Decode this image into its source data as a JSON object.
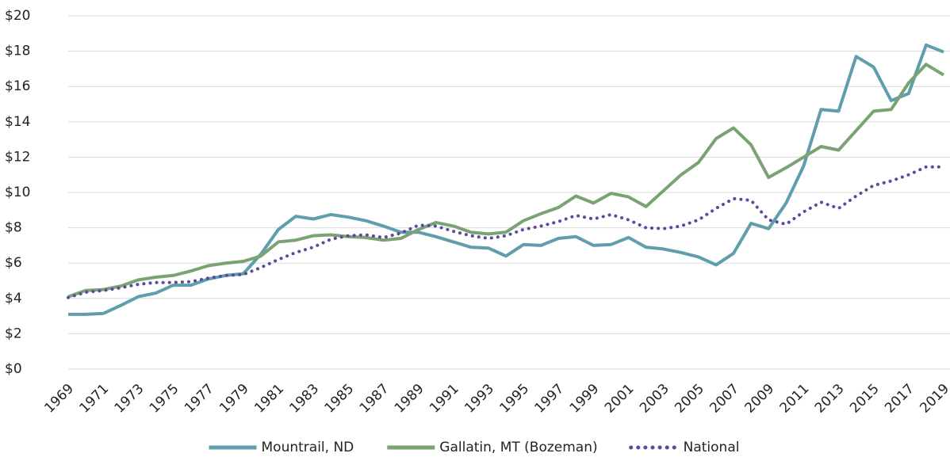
{
  "chart_data": {
    "type": "line",
    "categories": [
      "1969",
      null,
      "1971",
      null,
      "1973",
      null,
      "1975",
      null,
      "1977",
      null,
      "1979",
      null,
      "1981",
      null,
      "1983",
      null,
      "1985",
      null,
      "1987",
      null,
      "1989",
      null,
      "1991",
      null,
      "1993",
      null,
      "1995",
      null,
      "1997",
      null,
      "1999",
      null,
      "2001",
      null,
      "2003",
      null,
      "2005",
      null,
      "2007",
      null,
      "2009",
      null,
      "2011",
      null,
      "2013",
      null,
      "2015",
      null,
      "2017",
      null,
      "2019"
    ],
    "series": [
      {
        "name": "Mountrail, ND",
        "color": "#5f9eab",
        "style": "solid",
        "values": [
          3.1,
          3.1,
          3.15,
          3.6,
          4.1,
          4.3,
          4.75,
          4.75,
          5.1,
          5.3,
          5.4,
          6.5,
          7.9,
          8.65,
          8.5,
          8.75,
          8.6,
          8.4,
          8.1,
          7.75,
          7.75,
          7.5,
          7.2,
          6.9,
          6.85,
          6.4,
          7.05,
          7.0,
          7.4,
          7.5,
          7.0,
          7.05,
          7.45,
          6.9,
          6.8,
          6.6,
          6.35,
          5.9,
          6.55,
          8.25,
          7.95,
          9.4,
          11.5,
          14.7,
          14.6,
          17.7,
          17.1,
          15.2,
          15.6,
          18.35,
          17.95
        ]
      },
      {
        "name": "Gallatin, MT (Bozeman)",
        "color": "#7aa273",
        "style": "solid",
        "values": [
          4.1,
          4.45,
          4.5,
          4.7,
          5.05,
          5.2,
          5.3,
          5.55,
          5.85,
          6.0,
          6.1,
          6.4,
          7.2,
          7.3,
          7.55,
          7.6,
          7.5,
          7.45,
          7.3,
          7.4,
          7.9,
          8.3,
          8.1,
          7.75,
          7.65,
          7.75,
          8.4,
          8.8,
          9.15,
          9.8,
          9.4,
          9.95,
          9.75,
          9.2,
          10.1,
          11.0,
          11.7,
          13.05,
          13.65,
          12.7,
          10.85,
          11.4,
          12.0,
          12.6,
          12.4,
          13.5,
          14.6,
          14.7,
          16.2,
          17.25,
          16.65
        ]
      },
      {
        "name": "National",
        "color": "#5d4a9e",
        "style": "dotted",
        "values": [
          4.05,
          4.35,
          4.45,
          4.6,
          4.8,
          4.9,
          4.9,
          4.95,
          5.15,
          5.3,
          5.35,
          5.75,
          6.2,
          6.6,
          6.9,
          7.35,
          7.55,
          7.6,
          7.45,
          7.7,
          8.15,
          8.1,
          7.8,
          7.55,
          7.4,
          7.55,
          7.9,
          8.1,
          8.35,
          8.7,
          8.5,
          8.75,
          8.45,
          8.0,
          7.95,
          8.1,
          8.45,
          9.1,
          9.65,
          9.55,
          8.45,
          8.2,
          8.9,
          9.45,
          9.1,
          9.8,
          10.4,
          10.65,
          11.0,
          11.45,
          11.45
        ]
      }
    ],
    "ylim": [
      0,
      20
    ],
    "yticks": [
      {
        "value": 0,
        "label": "$0"
      },
      {
        "value": 2,
        "label": "$2"
      },
      {
        "value": 4,
        "label": "$4"
      },
      {
        "value": 6,
        "label": "$6"
      },
      {
        "value": 8,
        "label": "$8"
      },
      {
        "value": 10,
        "label": "$10"
      },
      {
        "value": 12,
        "label": "$12"
      },
      {
        "value": 14,
        "label": "$14"
      },
      {
        "value": 16,
        "label": "$16"
      },
      {
        "value": 18,
        "label": "$18"
      },
      {
        "value": 20,
        "label": "$20"
      }
    ],
    "grid": true,
    "legend": "bottom"
  }
}
